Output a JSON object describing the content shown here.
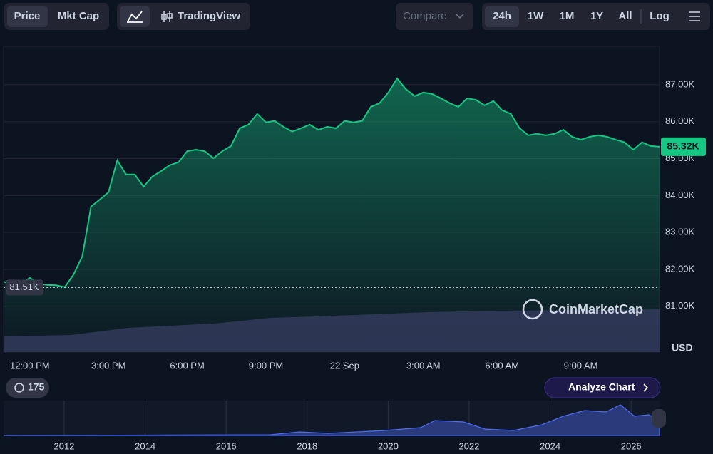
{
  "toolbar": {
    "price": "Price",
    "mkt_cap": "Mkt Cap",
    "tradingview": "TradingView",
    "compare": "Compare",
    "ranges": [
      "24h",
      "1W",
      "1M",
      "1Y",
      "All"
    ],
    "log": "Log"
  },
  "watermark": "CoinMarketCap",
  "currency": "USD",
  "counter": "175",
  "analyze": "Analyze Chart",
  "navigator": {
    "years": [
      "2012",
      "2014",
      "2016",
      "2018",
      "2020",
      "2022",
      "2024",
      "2026"
    ]
  },
  "chart_data": {
    "type": "line",
    "categories": [
      null,
      null,
      null,
      "12:00 PM",
      null,
      null,
      null,
      null,
      null,
      null,
      null,
      null,
      "3:00 PM",
      null,
      null,
      null,
      null,
      null,
      null,
      null,
      null,
      "6:00 PM",
      null,
      null,
      null,
      null,
      null,
      null,
      null,
      null,
      "9:00 PM",
      null,
      null,
      null,
      null,
      null,
      null,
      null,
      null,
      "22 Sep",
      null,
      null,
      null,
      null,
      null,
      null,
      null,
      null,
      "3:00 AM",
      null,
      null,
      null,
      null,
      null,
      null,
      null,
      null,
      "6:00 AM",
      null,
      null,
      null,
      null,
      null,
      null,
      null,
      null,
      "9:00 AM",
      null,
      null,
      null,
      null,
      null,
      null,
      null,
      null,
      null
    ],
    "series": [
      {
        "name": "Price",
        "color": "#16c784",
        "values": [
          81.67,
          81.58,
          81.61,
          81.77,
          81.61,
          81.58,
          81.57,
          81.52,
          81.86,
          82.35,
          83.7,
          83.89,
          84.09,
          84.95,
          84.57,
          84.57,
          84.24,
          84.51,
          84.66,
          84.82,
          84.9,
          85.2,
          85.24,
          85.2,
          85.01,
          85.2,
          85.34,
          85.82,
          85.92,
          86.21,
          85.98,
          86.02,
          85.86,
          85.73,
          85.82,
          85.92,
          85.78,
          85.86,
          85.82,
          86.02,
          85.98,
          86.02,
          86.4,
          86.5,
          86.79,
          87.17,
          86.88,
          86.69,
          86.79,
          86.75,
          86.63,
          86.5,
          86.4,
          86.63,
          86.59,
          86.44,
          86.56,
          86.31,
          86.21,
          85.82,
          85.63,
          85.67,
          85.63,
          85.67,
          85.78,
          85.59,
          85.51,
          85.59,
          85.63,
          85.59,
          85.51,
          85.44,
          85.24,
          85.44,
          85.34,
          85.32
        ]
      }
    ],
    "ylim": [
      79.76,
      88.04
    ],
    "yticks": [
      {
        "value": 81,
        "label": "81.00K"
      },
      {
        "value": 82,
        "label": "82.00K"
      },
      {
        "value": 83,
        "label": "83.00K"
      },
      {
        "value": 84,
        "label": "84.00K"
      },
      {
        "value": 85,
        "label": "85.00K"
      },
      {
        "value": 86,
        "label": "86.00K"
      },
      {
        "value": 87,
        "label": "87.00K"
      }
    ],
    "grid": true,
    "current": {
      "value": 85.32,
      "label": "85.32K"
    },
    "open": {
      "value": 81.51,
      "label": "81.51K"
    }
  }
}
